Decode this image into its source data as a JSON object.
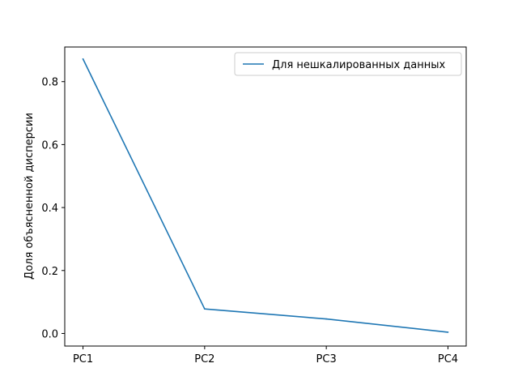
{
  "colors": {
    "series_line": "#1f77b4",
    "axes": "#000000",
    "background": "#ffffff",
    "legend_border": "#cccccc"
  },
  "chart_data": {
    "type": "line",
    "title": "",
    "xlabel": "",
    "ylabel": "Доля объясненной дисперсии",
    "categories": [
      "PC1",
      "PC2",
      "PC3",
      "PC4"
    ],
    "series": [
      {
        "name": "Для нешкалированных данных",
        "values": [
          0.872,
          0.078,
          0.046,
          0.004
        ]
      }
    ],
    "ylim": [
      -0.04,
      0.91
    ],
    "yticks": [
      0.0,
      0.2,
      0.4,
      0.6,
      0.8
    ],
    "ytick_labels": [
      "0.0",
      "0.2",
      "0.4",
      "0.6",
      "0.8"
    ],
    "grid": false,
    "legend_position": "top-right"
  }
}
